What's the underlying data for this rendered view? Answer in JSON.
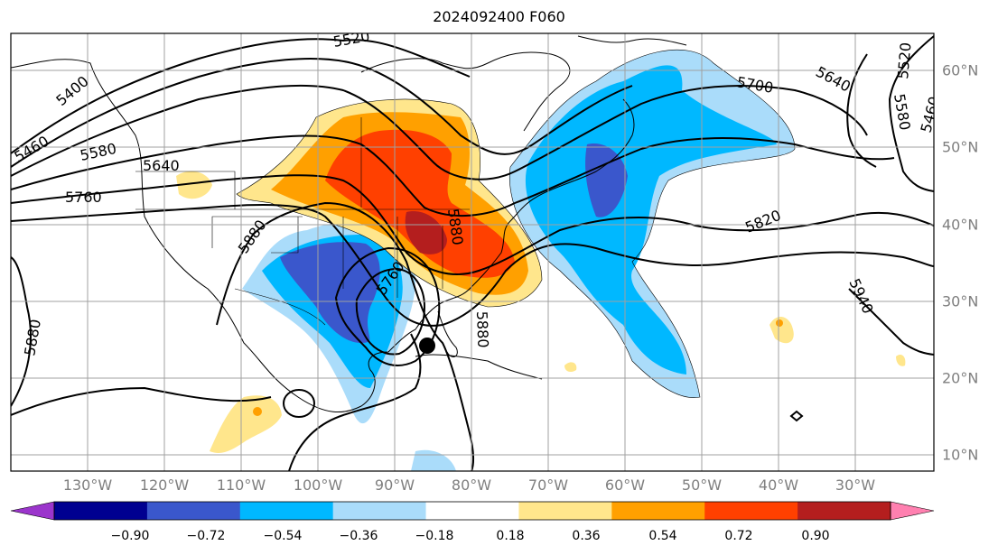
{
  "title": "2024092400 F060",
  "lon_labels": [
    "130°W",
    "120°W",
    "110°W",
    "100°W",
    "90°W",
    "80°W",
    "70°W",
    "60°W",
    "50°W",
    "40°W",
    "30°W"
  ],
  "lat_labels": [
    "60°N",
    "50°N",
    "40°N",
    "30°N",
    "20°N",
    "10°N"
  ],
  "contour_labels": [
    "5520",
    "5400",
    "5460",
    "5580",
    "5640",
    "5760",
    "5700",
    "5640",
    "5580",
    "5520",
    "5460",
    "5820",
    "5880",
    "5880",
    "5760",
    "5880",
    "5880",
    "5940"
  ],
  "colorbar": {
    "tick_labels": [
      "−0.90",
      "−0.72",
      "−0.54",
      "−0.36",
      "−0.18",
      "0.18",
      "0.36",
      "0.54",
      "0.72",
      "0.90"
    ],
    "colors": [
      "#9b35cc",
      "#000090",
      "#3a57cc",
      "#00b8ff",
      "#aadcfa",
      "#ffffff",
      "#ffe68c",
      "#ffa000",
      "#ff4000",
      "#b41e1e",
      "#ff80b0"
    ]
  },
  "colors": {
    "contour": "#000000",
    "grid": "#a0a0a0",
    "axis_label": "#7f7f7f",
    "marker": "#000000"
  }
}
